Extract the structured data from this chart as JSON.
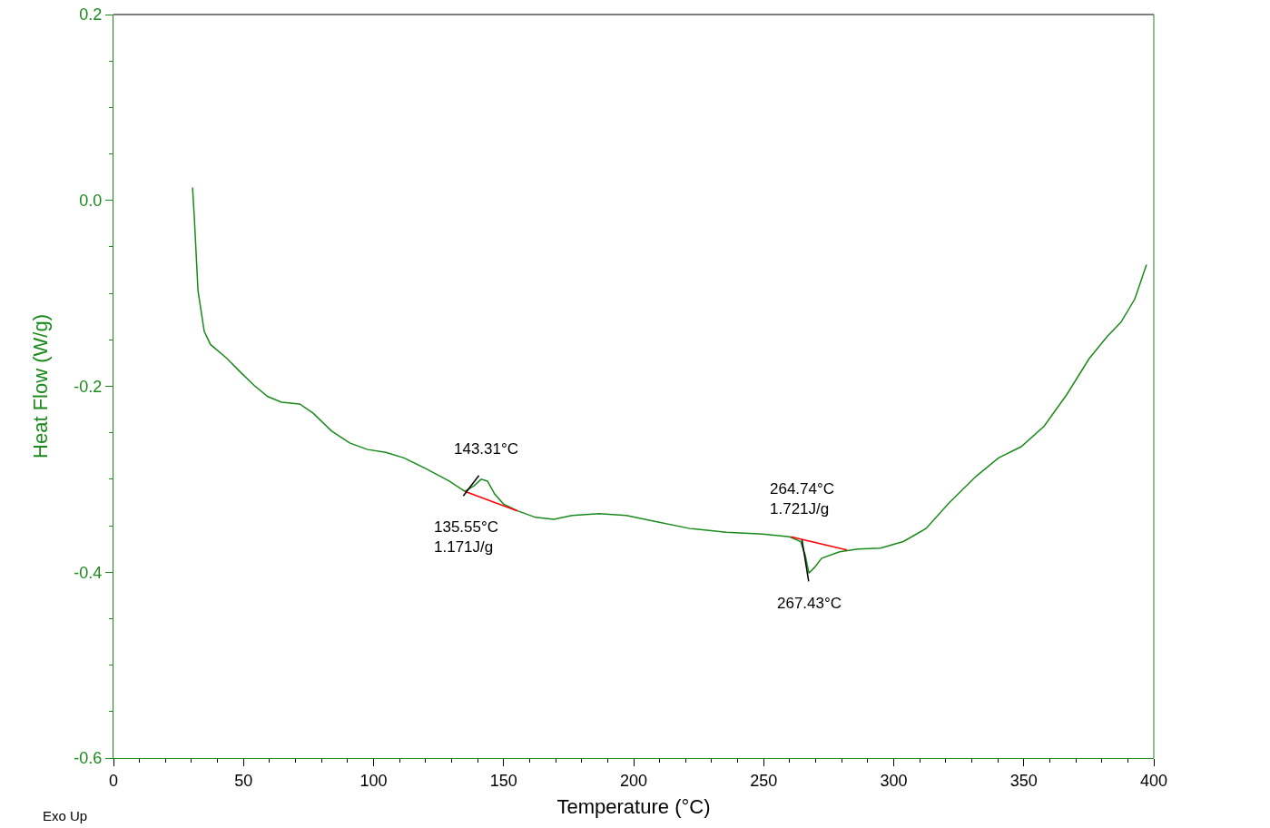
{
  "chart_data": {
    "type": "line",
    "xlabel": "Temperature (°C)",
    "ylabel": "Heat Flow (W/g)",
    "xlim": [
      0,
      400
    ],
    "xticks": [
      0,
      50,
      100,
      150,
      200,
      250,
      300,
      350,
      400
    ],
    "ylim": [
      -0.6,
      0.2
    ],
    "yticks": [
      {
        "value": -0.6,
        "label": "-0.6"
      },
      {
        "value": -0.4,
        "label": "-0.4"
      },
      {
        "value": -0.2,
        "label": "-0.2"
      },
      {
        "value": 0,
        "label": "0.0"
      },
      {
        "value": 0.2,
        "label": "0.2"
      }
    ],
    "grid": false,
    "marker": "none",
    "line_style": "solid",
    "series": [
      {
        "color": "#1a8a1a",
        "x": [
          30.4,
          31.1,
          32.5,
          34.9,
          37.3,
          43.6,
          48.9,
          54.1,
          59.3,
          64.6,
          71.6,
          76.8,
          83.8,
          90.8,
          97.7,
          104.7,
          111.7,
          120.4,
          129.1,
          135.1,
          138.6,
          141.4,
          143.8,
          146.6,
          150.1,
          155.3,
          162.3,
          169.3,
          176.3,
          186.7,
          197.2,
          207.7,
          221.6,
          235.6,
          249.6,
          260.0,
          264.2,
          266.0,
          267.4,
          269.5,
          272.3,
          279.2,
          286.2,
          294.9,
          303.7,
          312.4,
          321.1,
          331.6,
          340.3,
          349.0,
          357.8,
          366.5,
          375.2,
          382.2,
          387.4,
          392.7,
          397.2
        ],
        "values": [
          0.014,
          -0.019,
          -0.097,
          -0.141,
          -0.155,
          -0.17,
          -0.185,
          -0.199,
          -0.211,
          -0.217,
          -0.219,
          -0.229,
          -0.248,
          -0.261,
          -0.268,
          -0.271,
          -0.277,
          -0.289,
          -0.302,
          -0.313,
          -0.307,
          -0.3,
          -0.302,
          -0.316,
          -0.327,
          -0.334,
          -0.341,
          -0.343,
          -0.339,
          -0.337,
          -0.339,
          -0.345,
          -0.353,
          -0.357,
          -0.359,
          -0.362,
          -0.367,
          -0.382,
          -0.401,
          -0.395,
          -0.385,
          -0.378,
          -0.375,
          -0.374,
          -0.367,
          -0.353,
          -0.326,
          -0.297,
          -0.277,
          -0.265,
          -0.243,
          -0.209,
          -0.17,
          -0.146,
          -0.131,
          -0.106,
          -0.069
        ]
      },
      {
        "color": "#ff0000",
        "x": [
          135.1,
          155.3
        ],
        "values": [
          -0.313,
          -0.334
        ]
      },
      {
        "color": "#ff0000",
        "x": [
          260.5,
          282.0
        ],
        "values": [
          -0.362,
          -0.376
        ]
      },
      {
        "color": "#000000",
        "x": [
          134.5,
          140.5
        ],
        "values": [
          -0.318,
          -0.296
        ]
      },
      {
        "color": "#000000",
        "x": [
          264.7,
          267.3
        ],
        "values": [
          -0.365,
          -0.41
        ]
      }
    ],
    "annotations": [
      {
        "text": "143.31°C",
        "x": 143.31,
        "y": -0.302
      },
      {
        "text": "135.55°C\n1.171J/g",
        "x": 135.55,
        "y": -0.313
      },
      {
        "text": "264.74°C\n1.721J/g",
        "x": 264.74,
        "y": -0.367
      },
      {
        "text": "267.43°C",
        "x": 267.43,
        "y": -0.401
      },
      "Exo Up"
    ]
  }
}
